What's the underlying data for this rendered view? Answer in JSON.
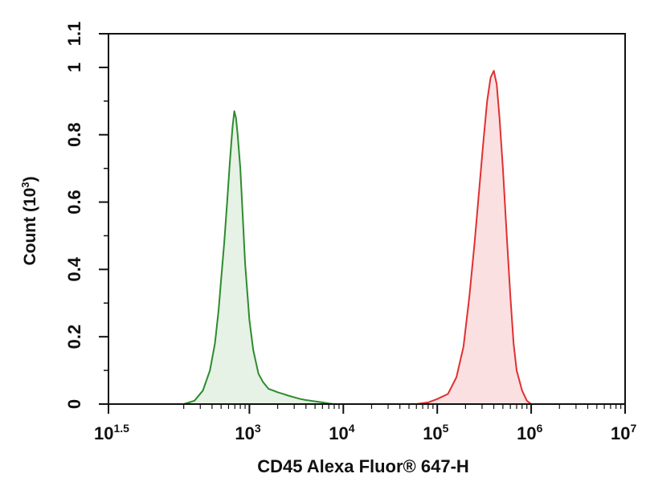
{
  "chart_data": {
    "type": "area",
    "title": "",
    "xlabel": "CD45 Alexa Fluor® 647-H",
    "ylabel_main": "Count (10",
    "ylabel_exp": "3",
    "ylabel_close": ")",
    "x_scale": "log",
    "xlim": [
      31.6,
      10000000
    ],
    "ylim": [
      0,
      1.1
    ],
    "grid": false,
    "legend": "none",
    "y_ticks": [
      {
        "value": 0,
        "label": "0"
      },
      {
        "value": 0.2,
        "label": "0.2"
      },
      {
        "value": 0.4,
        "label": "0.4"
      },
      {
        "value": 0.6,
        "label": "0.6"
      },
      {
        "value": 0.8,
        "label": "0.8"
      },
      {
        "value": 1.0,
        "label": "1"
      },
      {
        "value": 1.1,
        "label": "1.1"
      }
    ],
    "x_ticks": [
      {
        "value": 31.6,
        "base": "10",
        "exp": "1.5"
      },
      {
        "value": 1000,
        "base": "10",
        "exp": "3"
      },
      {
        "value": 10000,
        "base": "10",
        "exp": "4"
      },
      {
        "value": 100000,
        "base": "10",
        "exp": "5"
      },
      {
        "value": 1000000,
        "base": "10",
        "exp": "6"
      },
      {
        "value": 10000000,
        "base": "10",
        "exp": "7"
      }
    ],
    "series": [
      {
        "color": "#2e8b2e",
        "fill": "#e5f2e5",
        "x": [
          200,
          260,
          320,
          380,
          430,
          470,
          500,
          540,
          580,
          620,
          660,
          690,
          720,
          750,
          800,
          850,
          900,
          1000,
          1100,
          1250,
          1400,
          1600,
          1800,
          2000,
          2300,
          2600,
          3000,
          3500,
          4000,
          5000,
          6000,
          7000,
          8000
        ],
        "values": [
          0,
          0.01,
          0.04,
          0.1,
          0.18,
          0.28,
          0.37,
          0.48,
          0.6,
          0.72,
          0.82,
          0.87,
          0.85,
          0.8,
          0.7,
          0.56,
          0.42,
          0.25,
          0.16,
          0.09,
          0.065,
          0.045,
          0.04,
          0.035,
          0.03,
          0.025,
          0.02,
          0.015,
          0.012,
          0.008,
          0.005,
          0.002,
          0
        ]
      },
      {
        "color": "#e03030",
        "fill": "#fbe0e2",
        "x": [
          60000,
          80000,
          100000,
          130000,
          160000,
          190000,
          220000,
          250000,
          280000,
          310000,
          340000,
          370000,
          400000,
          430000,
          460000,
          500000,
          550000,
          600000,
          650000,
          700000,
          800000,
          900000,
          1000000
        ],
        "values": [
          0,
          0.005,
          0.015,
          0.03,
          0.08,
          0.17,
          0.32,
          0.48,
          0.64,
          0.78,
          0.9,
          0.97,
          0.99,
          0.95,
          0.85,
          0.7,
          0.5,
          0.32,
          0.18,
          0.1,
          0.04,
          0.01,
          0
        ]
      }
    ]
  }
}
